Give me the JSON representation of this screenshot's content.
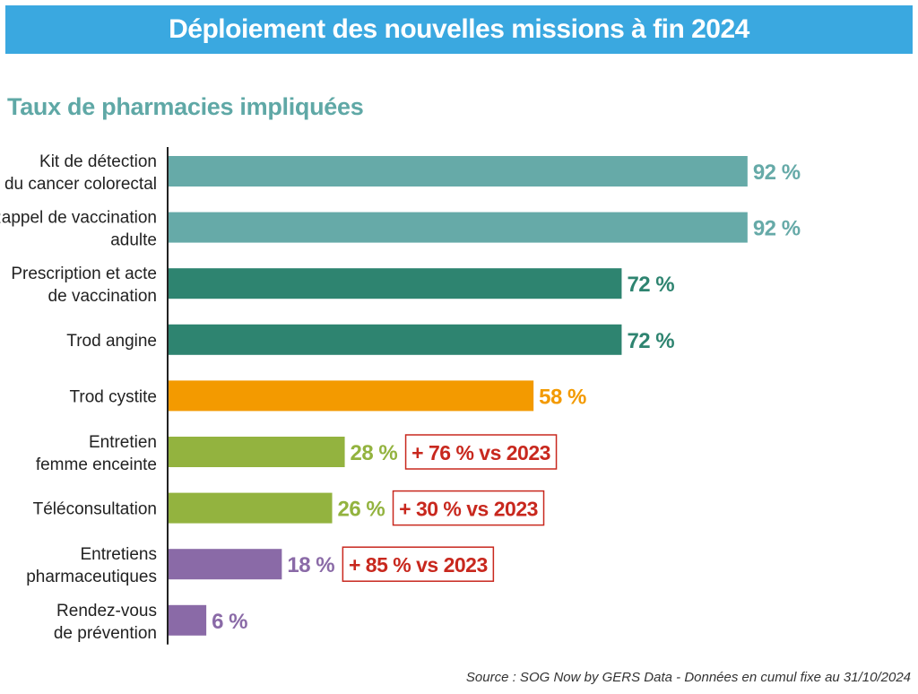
{
  "header": {
    "title": "Déploiement des nouvelles missions à fin 2024"
  },
  "subtitle": "Taux de pharmacies impliquées",
  "source": "Source : SOG Now by GERS Data - Données en cumul fixe au 31/10/2024",
  "chart_data": {
    "type": "bar",
    "orientation": "horizontal",
    "categories": [
      [
        "Kit de détection",
        "du cancer colorectal"
      ],
      [
        "Rappel de vaccination",
        "adulte"
      ],
      [
        "Prescription et acte",
        "de vaccination"
      ],
      [
        "Trod angine"
      ],
      [
        "Trod cystite"
      ],
      [
        "Entretien",
        "femme enceinte"
      ],
      [
        "Téléconsultation"
      ],
      [
        "Entretiens",
        "pharmaceutiques"
      ],
      [
        "Rendez-vous",
        "de prévention"
      ]
    ],
    "values": [
      92,
      92,
      72,
      72,
      58,
      28,
      26,
      18,
      6
    ],
    "value_labels": [
      "92 %",
      "92 %",
      "72 %",
      "72 %",
      "58 %",
      "28 %",
      "26 %",
      "18 %",
      "6 %"
    ],
    "colors": [
      "#66aaa8",
      "#66aaa8",
      "#2e8470",
      "#2e8470",
      "#f39a00",
      "#93b33f",
      "#93b33f",
      "#8a6aa7",
      "#8a6aa7"
    ],
    "annotations": [
      "",
      "",
      "",
      "",
      "",
      "+ 76 % vs 2023",
      "+ 30 % vs 2023",
      "+ 85 % vs 2023",
      ""
    ],
    "annotation_color": "#c8281e",
    "xlim": [
      0,
      100
    ],
    "grid": false
  }
}
